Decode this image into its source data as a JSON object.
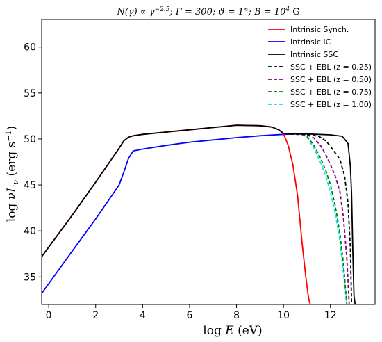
{
  "chart_data": {
    "type": "line",
    "title": "N(γ) ∝ γ^−2.5; Γ = 300; ϑ = 1°; B = 10^4 G",
    "xlabel": "log E   (eV)",
    "ylabel": "log νL_ν   (erg s^−1)",
    "xlim": [
      -0.3,
      13.9
    ],
    "ylim": [
      32,
      63
    ],
    "xticks": [
      0,
      2,
      4,
      6,
      8,
      10,
      12
    ],
    "yticks": [
      35,
      40,
      45,
      50,
      55,
      60
    ],
    "grid": false,
    "legend_position": "top-right",
    "series": [
      {
        "name": "Intrinsic Synch.",
        "color": "#ff0000",
        "dash": "solid",
        "x": [
          -0.3,
          1,
          2,
          3,
          3.2,
          3.4,
          3.6,
          4,
          5,
          6,
          7,
          8,
          9,
          9.5,
          9.8,
          10.0,
          10.2,
          10.4,
          10.6,
          10.8,
          10.95,
          11.05,
          11.1,
          11.15
        ],
        "y": [
          37.2,
          41.7,
          45.3,
          49.0,
          49.8,
          50.2,
          50.35,
          50.5,
          50.75,
          51.0,
          51.25,
          51.5,
          51.45,
          51.3,
          51.0,
          50.6,
          49.3,
          47.2,
          43.8,
          38.5,
          35.0,
          33.0,
          32.3,
          32.0
        ]
      },
      {
        "name": "Intrinsic IC",
        "color": "#0000ff",
        "dash": "solid",
        "x": [
          -0.3,
          1,
          2,
          3,
          3.2,
          3.4,
          3.6,
          4,
          5,
          6,
          7,
          8,
          9,
          10,
          10.4
        ],
        "y": [
          33.2,
          37.8,
          41.3,
          45.0,
          46.4,
          47.9,
          48.7,
          48.9,
          49.3,
          49.65,
          49.9,
          50.15,
          50.35,
          50.5,
          50.55
        ]
      },
      {
        "name": "Intrinsic SSC",
        "color": "#000000",
        "dash": "solid",
        "x": [
          -0.3,
          1,
          2,
          3,
          3.2,
          3.4,
          3.6,
          4,
          5,
          6,
          7,
          8,
          9,
          9.5,
          9.8,
          10.0,
          10.3,
          11,
          12,
          12.5,
          12.75,
          12.85,
          12.9,
          12.95,
          13.0,
          13.05
        ],
        "y": [
          37.2,
          41.7,
          45.3,
          49.0,
          49.8,
          50.2,
          50.35,
          50.5,
          50.75,
          51.0,
          51.25,
          51.5,
          51.45,
          51.3,
          51.0,
          50.6,
          50.55,
          50.55,
          50.45,
          50.3,
          49.5,
          47.0,
          44.0,
          38.0,
          33.0,
          32.0
        ]
      },
      {
        "name": "SSC + EBL (z = 0.25)",
        "color": "#000000",
        "dash": "dashed",
        "x": [
          10.3,
          11.0,
          11.5,
          11.8,
          12.0,
          12.2,
          12.4,
          12.6,
          12.75,
          12.85,
          12.9
        ],
        "y": [
          50.55,
          50.5,
          50.3,
          49.8,
          49.2,
          48.5,
          47.8,
          46.0,
          43.0,
          38.0,
          32.0
        ]
      },
      {
        "name": "SSC + EBL (z = 0.50)",
        "color": "#800080",
        "dash": "dashed",
        "x": [
          10.3,
          11.0,
          11.3,
          11.6,
          11.8,
          12.0,
          12.2,
          12.4,
          12.55,
          12.7,
          12.8
        ],
        "y": [
          50.55,
          50.45,
          50.1,
          49.2,
          48.3,
          47.2,
          46.0,
          44.3,
          41.5,
          37.0,
          32.0
        ]
      },
      {
        "name": "SSC + EBL (z = 0.75)",
        "color": "#008000",
        "dash": "dashed",
        "x": [
          10.3,
          10.8,
          11.0,
          11.3,
          11.6,
          11.8,
          12.0,
          12.2,
          12.4,
          12.55,
          12.7
        ],
        "y": [
          50.55,
          50.5,
          50.3,
          49.3,
          47.8,
          46.6,
          45.0,
          42.8,
          39.8,
          36.5,
          32.0
        ]
      },
      {
        "name": "SSC + EBL (z = 1.00)",
        "color": "#00e5ee",
        "dash": "dashed",
        "x": [
          10.3,
          10.8,
          11.0,
          11.3,
          11.6,
          11.8,
          12.0,
          12.2,
          12.4,
          12.55,
          12.7
        ],
        "y": [
          50.55,
          50.45,
          50.2,
          49.0,
          47.3,
          46.0,
          44.2,
          42.0,
          39.0,
          35.5,
          32.0
        ]
      }
    ]
  }
}
